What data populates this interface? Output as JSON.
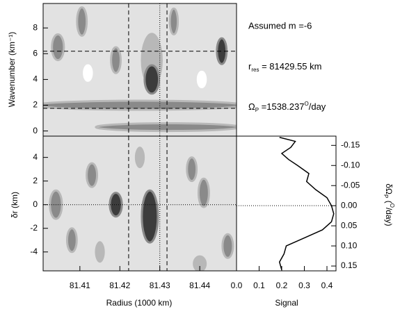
{
  "chart_data": [
    {
      "type": "contour",
      "ylabel": "Wavenumber (km⁻¹)",
      "xlim": [
        81.4008,
        81.4492
      ],
      "ylim": [
        -0.4,
        9.9
      ],
      "yticks": [
        0,
        2,
        4,
        6,
        8
      ],
      "background_level": 1,
      "vlines": [
        81.4222,
        81.4318
      ],
      "dotted_vlines": [
        81.43
      ],
      "hlines": [
        6.19,
        1.76
      ],
      "blobs": [
        {
          "x": 81.428,
          "y": 5.5,
          "rx": 0.003,
          "ry": 2.2,
          "level": 2
        },
        {
          "x": 81.428,
          "y": 4.0,
          "rx": 0.0018,
          "ry": 1.1,
          "level": 4
        },
        {
          "x": 81.4045,
          "y": 6.5,
          "rx": 0.0015,
          "ry": 1.0,
          "level": 3
        },
        {
          "x": 81.419,
          "y": 5.5,
          "rx": 0.0012,
          "ry": 1.0,
          "level": 3
        },
        {
          "x": 81.4105,
          "y": 8.5,
          "rx": 0.0012,
          "ry": 1.1,
          "level": 3
        },
        {
          "x": 81.4335,
          "y": 8.5,
          "rx": 0.001,
          "ry": 1.0,
          "level": 3
        },
        {
          "x": 81.4455,
          "y": 6.2,
          "rx": 0.0012,
          "ry": 1.0,
          "level": 4
        },
        {
          "x": 81.412,
          "y": 4.5,
          "rx": 0.001,
          "ry": 0.6,
          "level": 0
        },
        {
          "x": 81.4405,
          "y": 4.0,
          "rx": 0.001,
          "ry": 0.6,
          "level": 0
        },
        {
          "x": 81.425,
          "y": 2.0,
          "rx": 0.026,
          "ry": 0.35,
          "level": 3
        },
        {
          "x": 81.432,
          "y": 0.3,
          "rx": 0.018,
          "ry": 0.3,
          "level": 3
        }
      ],
      "annotations": {
        "m": "Assumed m =-6",
        "r": "r",
        "r_sub": "res",
        "r_value": " = 81429.55 km",
        "omega": "Ω",
        "omega_sub": "P",
        "omega_value": " =1538.237",
        "omega_sup": "O",
        "omega_unit": "/day"
      }
    },
    {
      "type": "contour",
      "xlabel": "Radius (1000 km)",
      "ylabel": "δr (km)",
      "xlim": [
        81.4008,
        81.4492
      ],
      "ylim": [
        -5.6,
        5.8
      ],
      "xticks": [
        81.41,
        81.42,
        81.43,
        81.44
      ],
      "yticks": [
        -4,
        -2,
        0,
        2,
        4
      ],
      "background_level": 1,
      "vlines": [
        81.4222,
        81.4318
      ],
      "dotted_vlines": [
        81.43
      ],
      "dotted_hlines": [
        0
      ],
      "blobs": [
        {
          "x": 81.4275,
          "y": -1.0,
          "rx": 0.002,
          "ry": 2.2,
          "level": 4
        },
        {
          "x": 81.419,
          "y": 0.0,
          "rx": 0.0015,
          "ry": 1.0,
          "level": 4
        },
        {
          "x": 81.413,
          "y": 2.5,
          "rx": 0.0013,
          "ry": 1.0,
          "level": 3
        },
        {
          "x": 81.404,
          "y": 0.0,
          "rx": 0.0015,
          "ry": 1.2,
          "level": 3
        },
        {
          "x": 81.441,
          "y": 1.0,
          "rx": 0.0013,
          "ry": 1.2,
          "level": 3
        },
        {
          "x": 81.447,
          "y": -3.5,
          "rx": 0.0013,
          "ry": 1.0,
          "level": 3
        },
        {
          "x": 81.438,
          "y": 3.0,
          "rx": 0.0012,
          "ry": 1.0,
          "level": 3
        },
        {
          "x": 81.425,
          "y": 4.0,
          "rx": 0.0015,
          "ry": 1.0,
          "level": 2
        },
        {
          "x": 81.415,
          "y": -4.0,
          "rx": 0.0015,
          "ry": 1.0,
          "level": 2
        },
        {
          "x": 81.44,
          "y": -5.0,
          "rx": 0.002,
          "ry": 0.8,
          "level": 2
        },
        {
          "x": 81.408,
          "y": -3.0,
          "rx": 0.0012,
          "ry": 1.0,
          "level": 3
        }
      ]
    },
    {
      "type": "line",
      "xlabel": "Signal",
      "ylabel": "δΩ",
      "ylabel_sub": "P",
      "ylabel_rest": " (",
      "ylabel_sup": "O",
      "ylabel_unit": "/day)",
      "xlim": [
        0,
        0.44
      ],
      "ylim": [
        -0.173,
        0.162
      ],
      "inverted": true,
      "xticks": [
        {
          "value": 0,
          "label": "0.0"
        },
        0.1,
        0.2,
        0.3,
        0.4
      ],
      "yticks": [
        -0.15,
        {
          "value": -0.1,
          "label": "-0.10"
        },
        -0.05,
        {
          "value": 0,
          "label": "0.00"
        },
        0.05,
        {
          "value": 0.1,
          "label": "0.10"
        },
        0.15
      ],
      "dotted_hlines": [
        0
      ],
      "color": "#000000",
      "y": [
        -0.17,
        -0.16,
        -0.145,
        -0.13,
        -0.115,
        -0.1,
        -0.08,
        -0.06,
        -0.04,
        -0.02,
        0.0,
        0.02,
        0.04,
        0.06,
        0.08,
        0.1,
        0.12,
        0.14,
        0.16
      ],
      "values": [
        0.19,
        0.26,
        0.24,
        0.2,
        0.23,
        0.27,
        0.32,
        0.31,
        0.35,
        0.4,
        0.42,
        0.43,
        0.42,
        0.38,
        0.3,
        0.22,
        0.21,
        0.19,
        0.2
      ]
    }
  ]
}
